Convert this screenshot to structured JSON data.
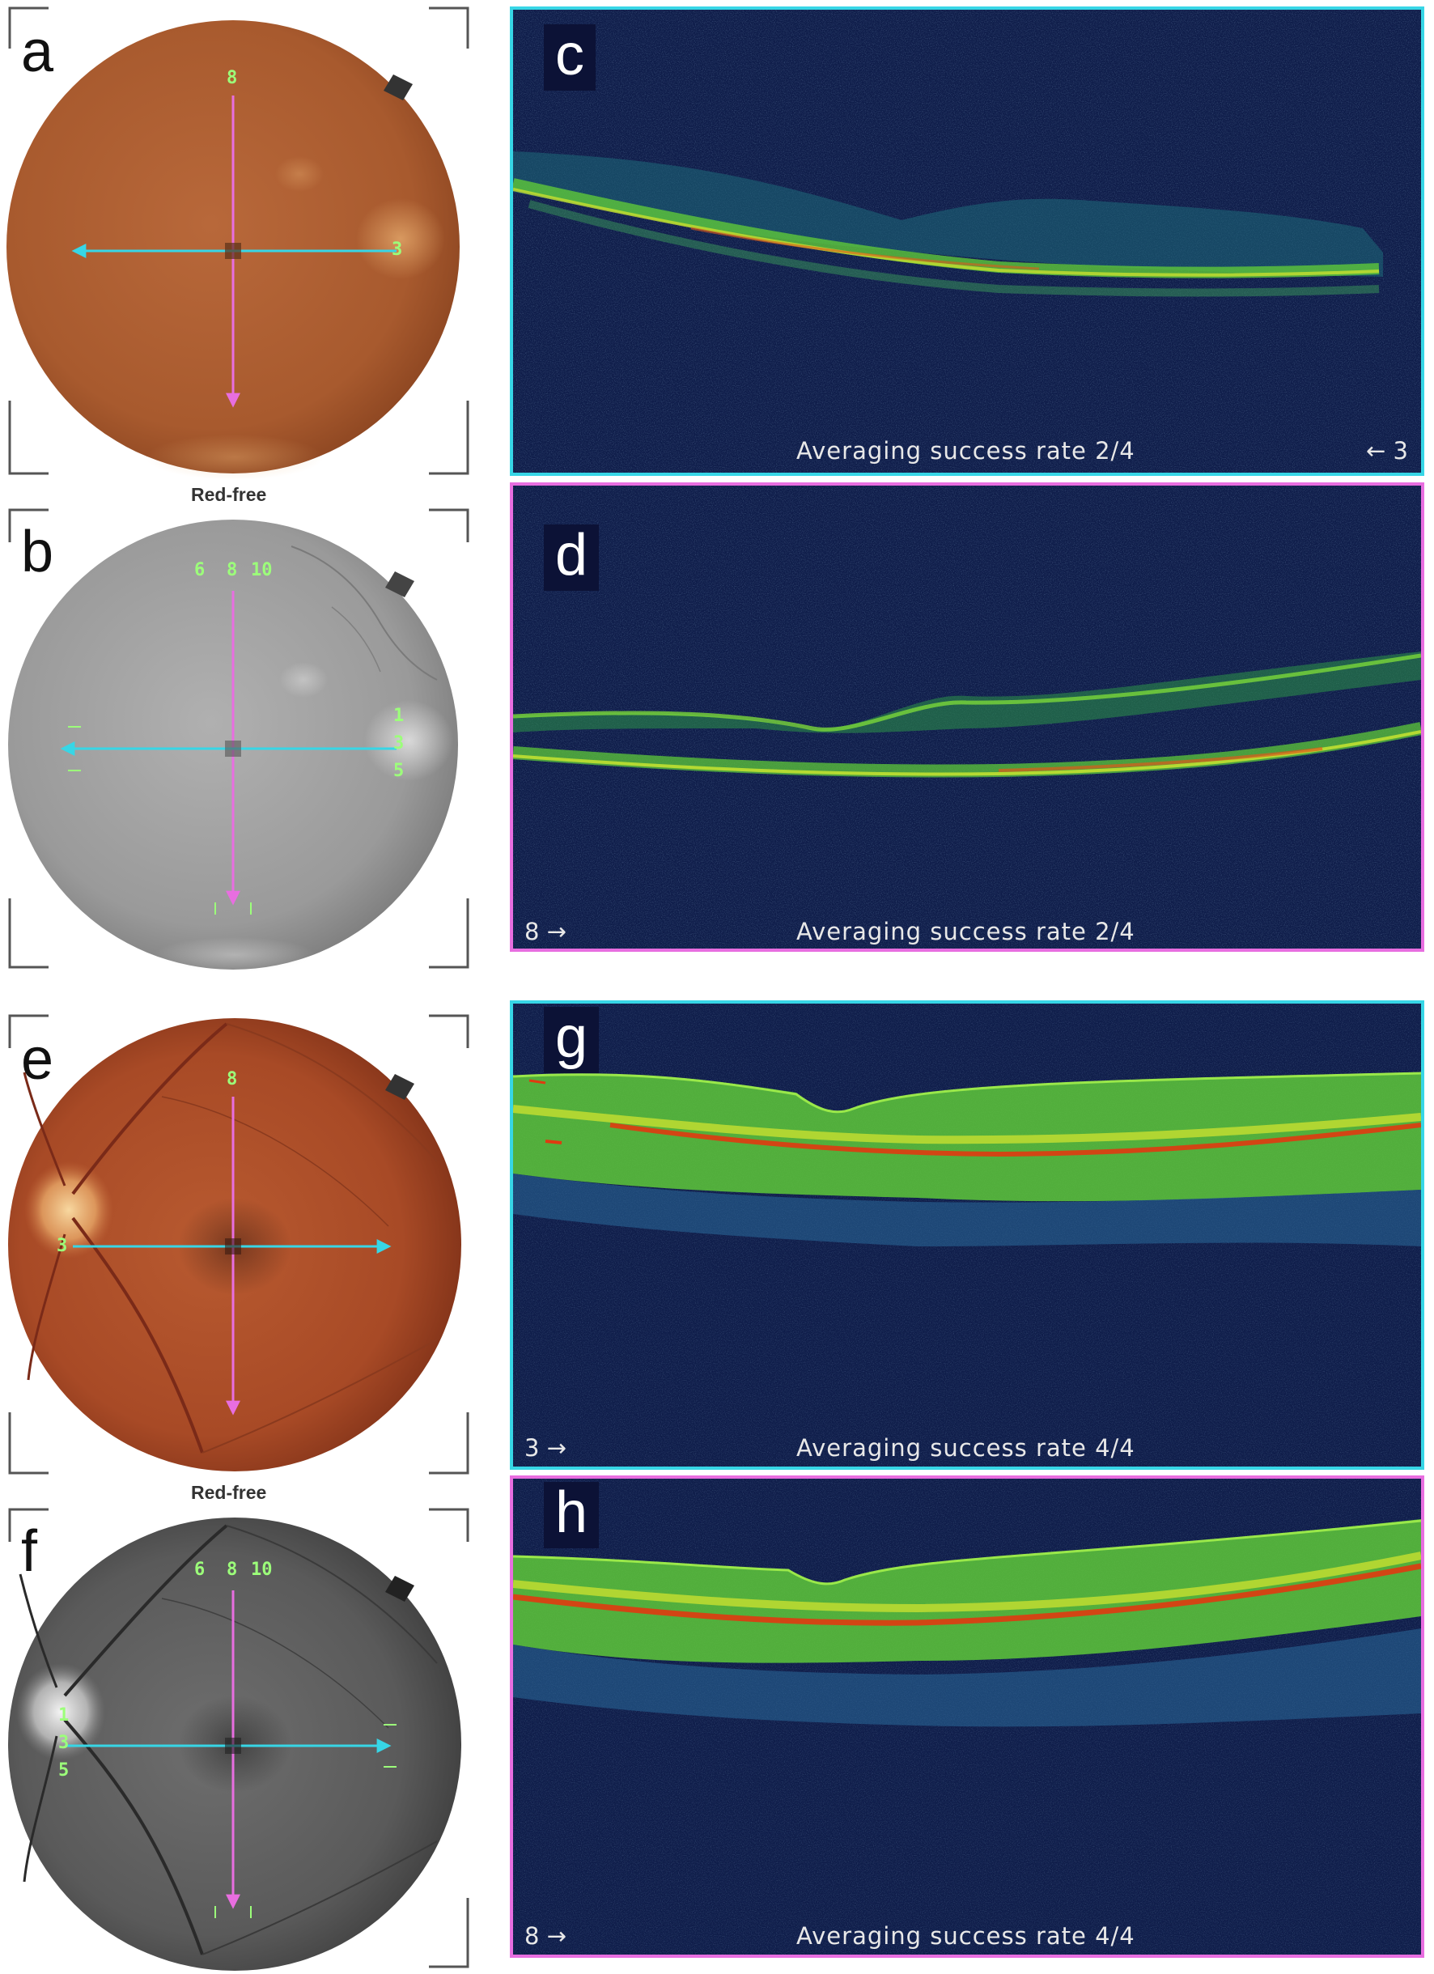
{
  "panels": {
    "a": {
      "letter": "a",
      "marker_top": "8",
      "marker_right": "3"
    },
    "b": {
      "letter": "b",
      "caption": "Red-free",
      "marker_top_left": "6",
      "marker_top_mid": "8",
      "marker_top_right": "10",
      "marker_r1": "1",
      "marker_r2": "3",
      "marker_r3": "5"
    },
    "c": {
      "letter": "c",
      "averaging": "Averaging success rate 2/4",
      "direction": "← 3"
    },
    "d": {
      "letter": "d",
      "averaging": "Averaging success rate 2/4",
      "direction": "8 →"
    },
    "e": {
      "letter": "e",
      "marker_top": "8",
      "marker_left": "3"
    },
    "f": {
      "letter": "f",
      "caption": "Red-free",
      "marker_top_left": "6",
      "marker_top_mid": "8",
      "marker_top_right": "10",
      "marker_l1": "1",
      "marker_l2": "3",
      "marker_l3": "5"
    },
    "g": {
      "letter": "g",
      "averaging": "Averaging success rate 4/4",
      "direction": "3 →"
    },
    "h": {
      "letter": "h",
      "averaging": "Averaging success rate 4/4",
      "direction": "8 →"
    }
  },
  "colors": {
    "horizontal_scan": "#37d6e6",
    "vertical_scan": "#e86ee0",
    "fundus_a": "#b8673a",
    "fundus_e": "#a8482a",
    "redfree_b": "#a8a8a8",
    "redfree_f": "#6a6a6a",
    "oct_background": "#0f1d4a"
  }
}
